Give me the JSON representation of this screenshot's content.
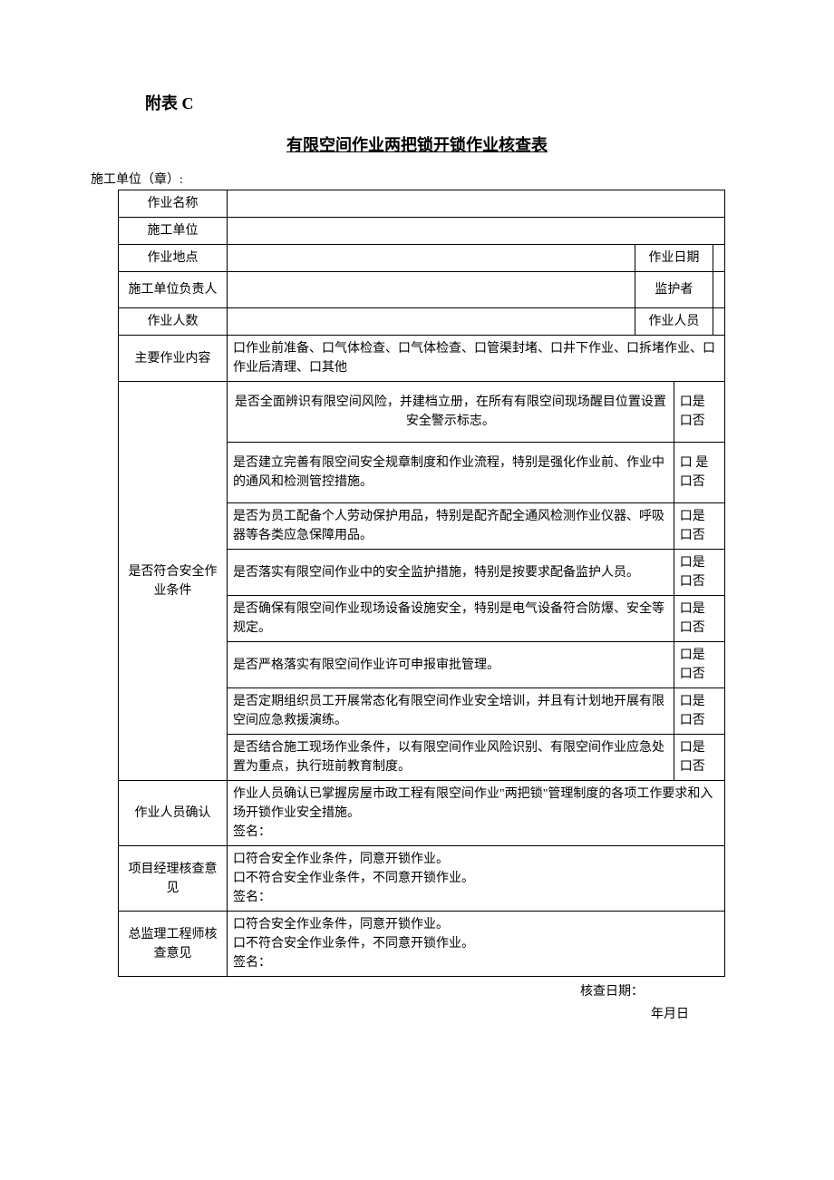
{
  "header": {
    "attachment": "附表 C",
    "title": "有限空间作业两把锁开锁作业核查表",
    "unit_label": "施工单位（章）:"
  },
  "rows": {
    "r1": {
      "label": "作业名称",
      "value": ""
    },
    "r2": {
      "label": "施工单位",
      "value": ""
    },
    "r3": {
      "label": "作业地点",
      "subLabel": "作业日期",
      "v1": "",
      "v2": ""
    },
    "r4": {
      "label": "施工单位负责人",
      "subLabel": "监护者",
      "v1": "",
      "v2": ""
    },
    "r5": {
      "label": "作业人数",
      "subLabel": "作业人员",
      "v1": "",
      "v2": ""
    },
    "r6": {
      "label": "主要作业内容",
      "value": "口作业前准备、口气体检查、口气体检查、口管渠封堵、口井下作业、口拆堵作业、口作业后清理、口其他"
    }
  },
  "safety": {
    "label": "是否符合安全作业条件",
    "items": [
      {
        "text": "是否全面辨识有限空间风险，并建档立册，在所有有限空间现场醒目位置设置安全警示标志。",
        "yes": "口是",
        "no": "口否"
      },
      {
        "text": "是否建立完善有限空间安全规章制度和作业流程，特别是强化作业前、作业中的通风和检测管控措施。",
        "yes": "口  是",
        "no": "口否"
      },
      {
        "text": "是否为员工配备个人劳动保护用品，特别是配齐配全通风检测作业仪器、呼吸器等各类应急保障用品。",
        "yes": "口是",
        "no": "口否"
      },
      {
        "text": "是否落实有限空间作业中的安全监护措施，特别是按要求配备监护人员。",
        "yes": "口是",
        "no": "口否"
      },
      {
        "text": "是否确保有限空间作业现场设备设施安全，特别是电气设备符合防爆、安全等规定。",
        "yes": "口是",
        "no": "口否"
      },
      {
        "text": "是否严格落实有限空间作业许可申报审批管理。",
        "yes": "口是",
        "no": "口否"
      },
      {
        "text": "是否定期组织员工开展常态化有限空间作业安全培训，并且有计划地开展有限空间应急救援演练。",
        "yes": "口是",
        "no": "口否"
      },
      {
        "text": "是否结合施工现场作业条件，以有限空间作业风险识别、有限空间作业应急处置为重点，执行班前教育制度。",
        "yes": "口是",
        "no": "口否"
      }
    ]
  },
  "confirm": {
    "label": "作业人员确认",
    "text": "作业人员确认已掌握房屋市政工程有限空间作业\"两把锁\"管理制度的各项工作要求和入场开锁作业安全措施。",
    "sign": "签名："
  },
  "pm": {
    "label": "项目经理核查意见",
    "opt1": "口符合安全作业条件，同意开锁作业。",
    "opt2": "口不符合安全作业条件，不同意开锁作业。",
    "sign": "签名："
  },
  "supervisor": {
    "label": "总监理工程师核查意见",
    "opt1": "口符合安全作业条件，同意开锁作业。",
    "opt2": "口不符合安全作业条件，不同意开锁作业。",
    "sign": "签名："
  },
  "footer": {
    "check_date": "核查日期：",
    "ymd": "年月日"
  }
}
